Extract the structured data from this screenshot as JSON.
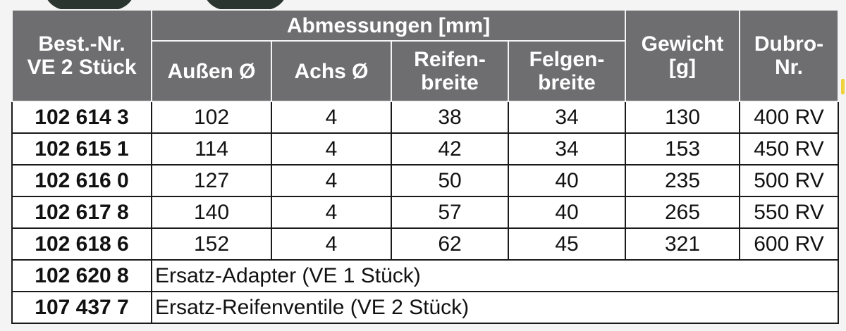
{
  "header": {
    "best_nr": "Best.-Nr.",
    "ve": "VE 2 Stück",
    "group": "Abmessungen [mm]",
    "gewicht_1": "Gewicht",
    "gewicht_2": "[g]",
    "dubro_1": "Dubro-",
    "dubro_2": "Nr.",
    "aussen": "Außen Ø",
    "achs": "Achs Ø",
    "reifen_1": "Reifen-",
    "reifen_2": "breite",
    "felgen_1": "Felgen-",
    "felgen_2": "breite"
  },
  "rows": [
    {
      "nr": "102 614 3",
      "aussen": "102",
      "achs": "4",
      "reifen": "38",
      "felgen": "34",
      "gewicht": "130",
      "dubro": "400 RV"
    },
    {
      "nr": "102 615 1",
      "aussen": "114",
      "achs": "4",
      "reifen": "42",
      "felgen": "34",
      "gewicht": "153",
      "dubro": "450 RV"
    },
    {
      "nr": "102 616 0",
      "aussen": "127",
      "achs": "4",
      "reifen": "50",
      "felgen": "40",
      "gewicht": "235",
      "dubro": "500 RV"
    },
    {
      "nr": "102 617 8",
      "aussen": "140",
      "achs": "4",
      "reifen": "57",
      "felgen": "40",
      "gewicht": "265",
      "dubro": "550 RV"
    },
    {
      "nr": "102 618 6",
      "aussen": "152",
      "achs": "4",
      "reifen": "62",
      "felgen": "45",
      "gewicht": "321",
      "dubro": "600 RV"
    }
  ],
  "extras": [
    {
      "nr": "102 620 8",
      "text": "Ersatz-Adapter (VE 1 Stück)"
    },
    {
      "nr": "107 437 7",
      "text": "Ersatz-Reifenventile (VE 2 Stück)"
    }
  ],
  "colors": {
    "header_bg": "#6e6e70",
    "header_text": "#ffffff",
    "cell_bg": "#ffffff"
  }
}
